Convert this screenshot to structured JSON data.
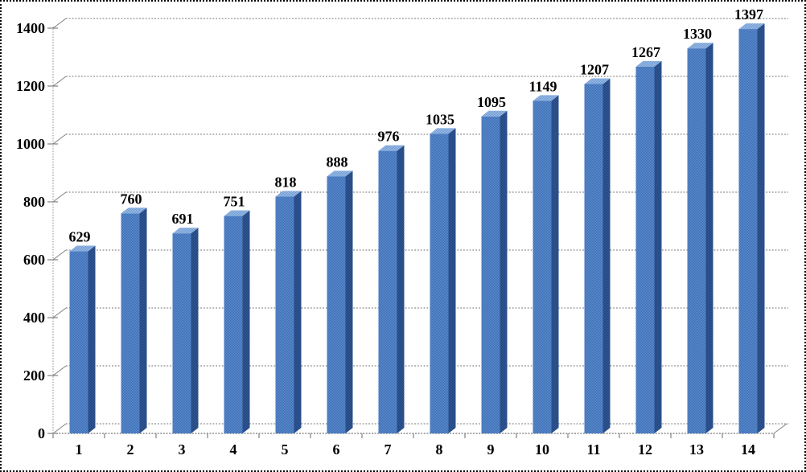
{
  "chart_data": {
    "type": "bar",
    "style": "3d-column",
    "title": "",
    "xlabel": "",
    "ylabel": "",
    "categories": [
      "1",
      "2",
      "3",
      "4",
      "5",
      "6",
      "7",
      "8",
      "9",
      "10",
      "11",
      "12",
      "13",
      "14"
    ],
    "values": [
      629,
      760,
      691,
      751,
      818,
      888,
      976,
      1035,
      1095,
      1149,
      1207,
      1267,
      1330,
      1397
    ],
    "data_labels": [
      "629",
      "760",
      "691",
      "751",
      "818",
      "888",
      "976",
      "1035",
      "1095",
      "1149",
      "1207",
      "1267",
      "1330",
      "1397"
    ],
    "ylim": [
      0,
      1400
    ],
    "ytick_step": 200,
    "ytick_labels": [
      "0",
      "200",
      "400",
      "600",
      "800",
      "1000",
      "1200",
      "1400"
    ],
    "grid": true,
    "legend_position": "none",
    "colors": {
      "background": "#ffffff",
      "frame_border": "#000000",
      "bar_front_light": "#5b8ad0",
      "bar_front_dark": "#3f70b2",
      "bar_side_light": "#32599a",
      "bar_side_dark": "#224479",
      "bar_top_light": "#9dbde6",
      "bar_top_dark": "#6f9bd3",
      "gridline": "#9e9e9e",
      "axis_line": "#808080",
      "floor_line": "#a8a8a8",
      "label_text": "#000000"
    }
  }
}
